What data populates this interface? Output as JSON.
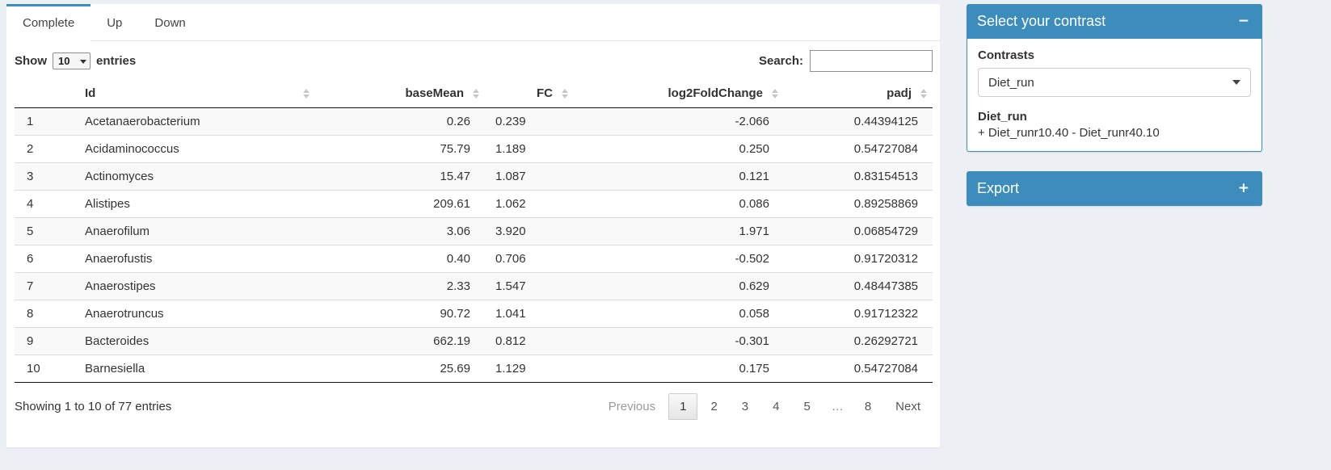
{
  "colors": {
    "accent": "#3c8dbc",
    "page_bg": "#ecf0f5"
  },
  "tabs": [
    {
      "label": "Complete",
      "active": true
    },
    {
      "label": "Up",
      "active": false
    },
    {
      "label": "Down",
      "active": false
    }
  ],
  "controls": {
    "show_label": "Show",
    "entries_label": "entries",
    "page_length": "10",
    "search_label": "Search:",
    "search_value": ""
  },
  "table": {
    "columns": [
      "",
      "Id",
      "baseMean",
      "FC",
      "log2FoldChange",
      "padj"
    ],
    "column_keys": [
      "row-index",
      "id",
      "basemean",
      "fc",
      "log2foldchange",
      "padj"
    ],
    "rows": [
      [
        "1",
        "Acetanaerobacterium",
        "0.26",
        "0.239",
        "-2.066",
        "0.44394125"
      ],
      [
        "2",
        "Acidaminococcus",
        "75.79",
        "1.189",
        "0.250",
        "0.54727084"
      ],
      [
        "3",
        "Actinomyces",
        "15.47",
        "1.087",
        "0.121",
        "0.83154513"
      ],
      [
        "4",
        "Alistipes",
        "209.61",
        "1.062",
        "0.086",
        "0.89258869"
      ],
      [
        "5",
        "Anaerofilum",
        "3.06",
        "3.920",
        "1.971",
        "0.06854729"
      ],
      [
        "6",
        "Anaerofustis",
        "0.40",
        "0.706",
        "-0.502",
        "0.91720312"
      ],
      [
        "7",
        "Anaerostipes",
        "2.33",
        "1.547",
        "0.629",
        "0.48447385"
      ],
      [
        "8",
        "Anaerotruncus",
        "90.72",
        "1.041",
        "0.058",
        "0.91712322"
      ],
      [
        "9",
        "Bacteroides",
        "662.19",
        "0.812",
        "-0.301",
        "0.26292721"
      ],
      [
        "10",
        "Barnesiella",
        "25.69",
        "1.129",
        "0.175",
        "0.54727084"
      ]
    ]
  },
  "footer": {
    "info": "Showing 1 to 10 of 77 entries",
    "pagination": [
      {
        "label": "Previous",
        "type": "disabled"
      },
      {
        "label": "1",
        "type": "current"
      },
      {
        "label": "2",
        "type": "page"
      },
      {
        "label": "3",
        "type": "page"
      },
      {
        "label": "4",
        "type": "page"
      },
      {
        "label": "5",
        "type": "page"
      },
      {
        "label": "…",
        "type": "ellipsis"
      },
      {
        "label": "8",
        "type": "page"
      },
      {
        "label": "Next",
        "type": "page"
      }
    ]
  },
  "contrast_box": {
    "title": "Select your contrast",
    "collapse_icon": "−",
    "contrasts_label": "Contrasts",
    "selected_contrast": "Diet_run",
    "contrast_name": "Diet_run",
    "contrast_formula": "+ Diet_runr10.40 - Diet_runr40.10"
  },
  "export_box": {
    "title": "Export",
    "expand_icon": "+"
  }
}
